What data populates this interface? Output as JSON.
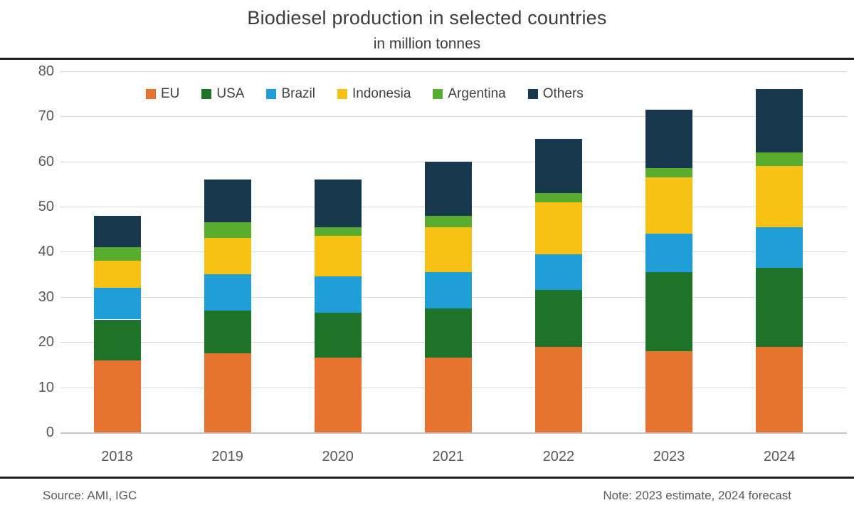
{
  "header": {
    "title": "Biodiesel production in selected countries",
    "subtitle": "in million tonnes"
  },
  "footer": {
    "source": "Source: AMI, IGC",
    "note": "Note: 2023 estimate, 2024 forecast"
  },
  "chart_data": {
    "type": "bar",
    "stacked": true,
    "title": "Biodiesel production in selected countries",
    "subtitle": "in million tonnes",
    "categories": [
      "2018",
      "2019",
      "2020",
      "2021",
      "2022",
      "2023",
      "2024"
    ],
    "series": [
      {
        "name": "EU",
        "color": "#e8722f",
        "values": [
          16,
          17.5,
          16.5,
          16.5,
          19,
          18,
          19
        ]
      },
      {
        "name": "USA",
        "color": "#1e7328",
        "values": [
          9,
          9.5,
          10,
          11,
          12.5,
          17.5,
          17.5
        ]
      },
      {
        "name": "Brazil",
        "color": "#1f9ed9",
        "values": [
          7,
          8,
          8,
          8,
          8,
          8.5,
          9
        ]
      },
      {
        "name": "Indonesia",
        "color": "#f7c214",
        "values": [
          6,
          8,
          9,
          10,
          11.5,
          12.5,
          13.5
        ]
      },
      {
        "name": "Argentina",
        "color": "#58ac30",
        "values": [
          3,
          3.5,
          2,
          2.5,
          2,
          2,
          3
        ]
      },
      {
        "name": "Others",
        "color": "#17384e",
        "values": [
          7,
          9.5,
          10.5,
          12,
          12,
          13,
          14
        ]
      }
    ],
    "totals": [
      48,
      56,
      56,
      60,
      65,
      71.5,
      76
    ],
    "ylabel": "",
    "xlabel": "",
    "ylim": [
      0,
      80
    ],
    "yticks": [
      0,
      10,
      20,
      30,
      40,
      50,
      60,
      70,
      80
    ],
    "grid": true,
    "legend_position": "top"
  }
}
